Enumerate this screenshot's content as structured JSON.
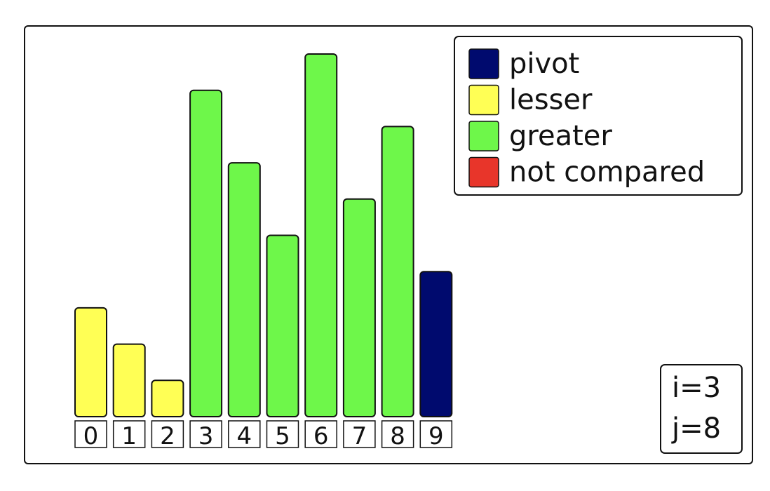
{
  "chart_data": {
    "type": "bar",
    "categories": [
      "0",
      "1",
      "2",
      "3",
      "4",
      "5",
      "6",
      "7",
      "8",
      "9"
    ],
    "values": [
      3,
      2,
      1,
      9,
      7,
      5,
      10,
      6,
      8,
      4
    ],
    "states": [
      "lesser",
      "lesser",
      "lesser",
      "greater",
      "greater",
      "greater",
      "greater",
      "greater",
      "greater",
      "pivot"
    ],
    "ylim": [
      0,
      10
    ],
    "grid": false,
    "legend_position": "top-right",
    "legend": [
      {
        "key": "pivot",
        "label": "pivot",
        "color": "#000a6e"
      },
      {
        "key": "lesser",
        "label": "lesser",
        "color": "#ffff55"
      },
      {
        "key": "greater",
        "label": "greater",
        "color": "#6ef74a"
      },
      {
        "key": "not_compared",
        "label": "not compared",
        "color": "#e8352a"
      }
    ]
  },
  "state": {
    "i_label": "i=3",
    "j_label": "j=8"
  }
}
